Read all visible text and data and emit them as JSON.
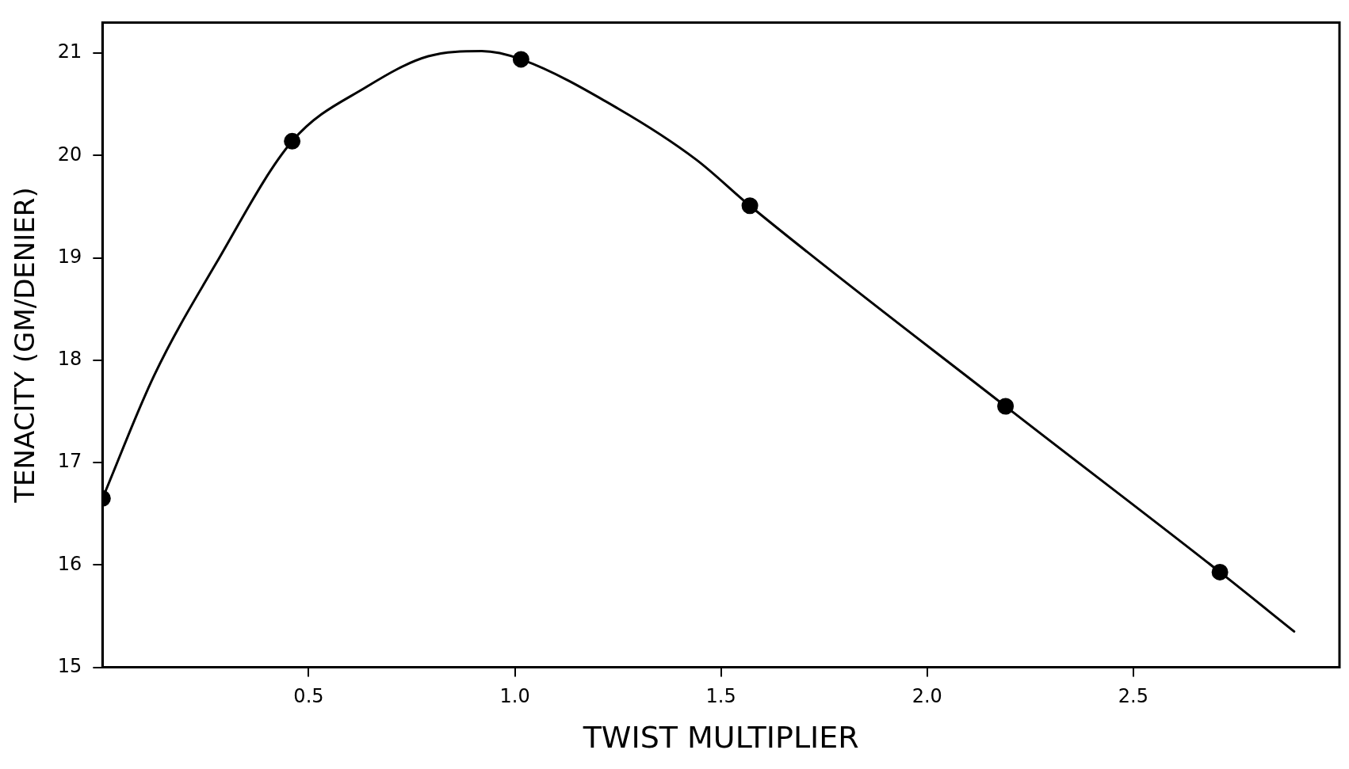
{
  "chart_data": {
    "type": "line",
    "xlabel": "TWIST MULTIPLIER",
    "ylabel": "TENACITY (GM/DENIER)",
    "xlim": [
      0,
      3
    ],
    "ylim": [
      15,
      21.3
    ],
    "xticks": [
      0.5,
      {
        "value": 1,
        "label": "1.0"
      },
      1.5,
      {
        "value": 2,
        "label": "2.0"
      },
      2.5
    ],
    "yticks": [
      15,
      16,
      17,
      18,
      19,
      20,
      21
    ],
    "grid": false,
    "legend": false,
    "series": [
      {
        "color": "#000000",
        "marker": "none",
        "line_style": "solid",
        "x": [
          0,
          0.125,
          0.276,
          0.46,
          0.64,
          0.79,
          0.92,
          1.015,
          1.25,
          1.44,
          1.57,
          2.19,
          2.71,
          2.89
        ],
        "values": [
          16.65,
          17.85,
          18.95,
          20.14,
          20.67,
          20.97,
          21.02,
          20.94,
          20.46,
          19.96,
          19.51,
          17.55,
          15.93,
          15.35
        ]
      },
      {
        "type": "scatter",
        "color": "#000000",
        "marker": "circle",
        "x": [
          0,
          0.46,
          1.015,
          1.57,
          2.19,
          2.71
        ],
        "values": [
          16.65,
          20.14,
          20.94,
          19.51,
          17.55,
          15.93
        ]
      }
    ]
  }
}
